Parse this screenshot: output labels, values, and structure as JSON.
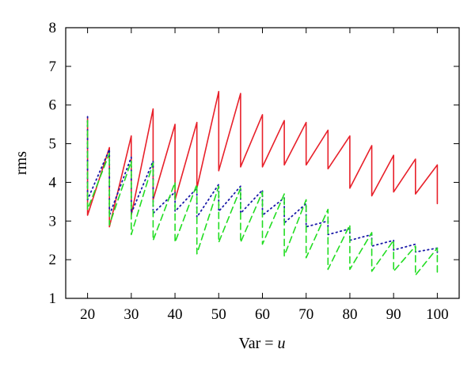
{
  "chart_data": {
    "type": "line",
    "ylabel": "rms",
    "xlabel": "Var = ",
    "xlabel_var": "u",
    "xlim": [
      15,
      105
    ],
    "ylim": [
      1,
      8
    ],
    "xticks": [
      "20",
      "30",
      "40",
      "50",
      "60",
      "70",
      "80",
      "90",
      "100"
    ],
    "yticks": [
      "1",
      "2",
      "3",
      "4",
      "5",
      "6",
      "7",
      "8"
    ],
    "grid": false,
    "legend": "none",
    "series": [
      {
        "color": "#e8202a",
        "style": "solid",
        "x": [
          20,
          20,
          25,
          25,
          30,
          30,
          35,
          35,
          40,
          40,
          45,
          45,
          50,
          50,
          55,
          55,
          60,
          60,
          65,
          65,
          70,
          70,
          75,
          75,
          80,
          80,
          85,
          85,
          90,
          90,
          95,
          95,
          100,
          100
        ],
        "y": [
          5.65,
          3.15,
          4.9,
          2.85,
          5.2,
          3.15,
          5.9,
          3.55,
          5.5,
          3.55,
          5.55,
          3.85,
          6.35,
          4.3,
          6.3,
          4.4,
          5.75,
          4.4,
          5.6,
          4.45,
          5.55,
          4.45,
          5.35,
          4.35,
          5.2,
          3.85,
          4.95,
          3.65,
          4.7,
          3.75,
          4.6,
          3.7,
          4.45,
          3.45
        ]
      },
      {
        "color": "#1a1aa8",
        "style": "dotted",
        "x": [
          20,
          20,
          25,
          25,
          30,
          30,
          35,
          35,
          40,
          40,
          45,
          45,
          50,
          50,
          55,
          55,
          60,
          60,
          65,
          65,
          70,
          70,
          75,
          75,
          80,
          80,
          85,
          85,
          90,
          90,
          95,
          95,
          100,
          100
        ],
        "y": [
          5.7,
          3.55,
          4.85,
          3.15,
          4.65,
          3.2,
          4.55,
          3.2,
          3.75,
          3.25,
          3.85,
          3.1,
          3.95,
          3.25,
          3.9,
          3.2,
          3.8,
          3.15,
          3.6,
          2.95,
          3.45,
          2.85,
          3.0,
          2.65,
          2.8,
          2.5,
          2.65,
          2.35,
          2.5,
          2.25,
          2.4,
          2.2,
          2.3,
          2.15
        ]
      },
      {
        "color": "#22dd22",
        "style": "dashed",
        "x": [
          20,
          20,
          25,
          25,
          30,
          30,
          35,
          35,
          40,
          40,
          45,
          45,
          50,
          50,
          55,
          55,
          60,
          60,
          65,
          65,
          70,
          70,
          75,
          75,
          80,
          80,
          85,
          85,
          90,
          90,
          95,
          95,
          100,
          100
        ],
        "y": [
          5.6,
          3.3,
          4.75,
          2.9,
          4.55,
          2.65,
          4.5,
          2.5,
          4.0,
          2.45,
          3.95,
          2.15,
          3.9,
          2.45,
          3.85,
          2.45,
          3.75,
          2.4,
          3.7,
          2.1,
          3.55,
          2.05,
          3.3,
          1.75,
          2.9,
          1.75,
          2.7,
          1.7,
          2.5,
          1.7,
          2.35,
          1.6,
          2.3,
          1.6
        ]
      }
    ]
  }
}
